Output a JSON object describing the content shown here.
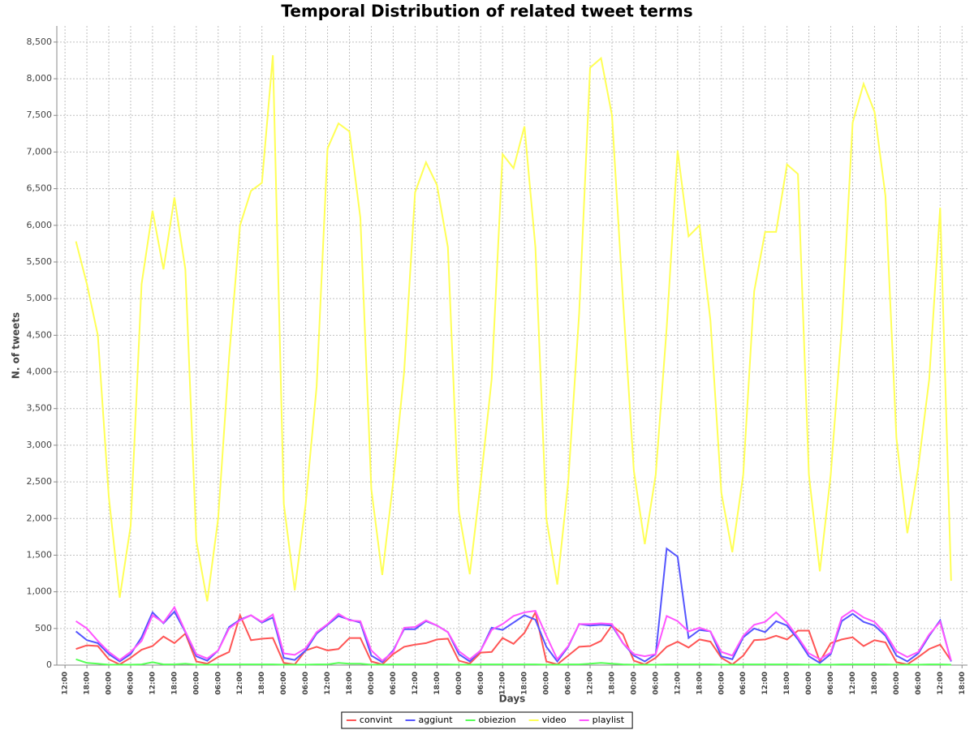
{
  "chart_data": {
    "type": "line",
    "title": "Temporal Distribution of related tweet terms",
    "x_label": "Days",
    "y_label": "N. of tweets",
    "x": [
      3,
      6,
      9,
      12,
      15,
      18,
      21,
      24,
      27,
      30,
      33,
      36,
      39,
      42,
      45,
      48,
      51,
      54,
      57,
      60,
      63,
      66,
      69,
      72,
      75,
      78,
      81,
      84,
      87,
      90,
      93,
      96,
      99,
      102,
      105,
      108,
      111,
      114,
      117,
      120,
      123,
      126,
      129,
      132,
      135,
      138,
      141,
      144,
      147,
      150,
      153,
      156,
      159,
      162,
      165,
      168,
      171,
      174,
      177,
      180,
      183,
      186,
      189,
      192,
      195,
      198,
      201,
      204,
      207,
      210,
      213,
      216,
      219,
      222,
      225,
      228,
      231,
      234,
      237,
      240,
      243
    ],
    "series": [
      {
        "name": "convint",
        "color": "#ff5555",
        "values": [
          220,
          270,
          260,
          80,
          10,
          100,
          210,
          260,
          390,
          300,
          430,
          50,
          20,
          110,
          180,
          680,
          340,
          360,
          370,
          30,
          10,
          200,
          250,
          200,
          220,
          370,
          370,
          50,
          10,
          150,
          250,
          280,
          300,
          350,
          360,
          60,
          20,
          170,
          180,
          370,
          290,
          440,
          720,
          50,
          10,
          130,
          250,
          260,
          330,
          540,
          420,
          60,
          10,
          100,
          250,
          320,
          240,
          350,
          320,
          100,
          10,
          130,
          340,
          350,
          400,
          350,
          470,
          470,
          50,
          300,
          350,
          380,
          260,
          340,
          310,
          40,
          10,
          110,
          220,
          280,
          60
        ]
      },
      {
        "name": "aggiunt",
        "color": "#5555ff",
        "values": [
          460,
          340,
          300,
          150,
          50,
          150,
          380,
          720,
          570,
          730,
          450,
          120,
          60,
          200,
          520,
          620,
          680,
          580,
          650,
          100,
          70,
          200,
          430,
          550,
          670,
          620,
          580,
          130,
          40,
          200,
          490,
          490,
          600,
          540,
          450,
          150,
          50,
          200,
          510,
          480,
          580,
          680,
          620,
          250,
          50,
          250,
          560,
          540,
          550,
          540,
          300,
          130,
          50,
          150,
          1590,
          1480,
          370,
          480,
          460,
          120,
          80,
          380,
          500,
          450,
          600,
          540,
          350,
          120,
          30,
          150,
          600,
          700,
          590,
          540,
          400,
          130,
          50,
          160,
          400,
          610,
          50
        ]
      },
      {
        "name": "obiezion",
        "color": "#55ff55",
        "values": [
          80,
          30,
          20,
          5,
          5,
          5,
          10,
          40,
          10,
          10,
          20,
          5,
          5,
          10,
          10,
          10,
          10,
          10,
          10,
          5,
          5,
          5,
          10,
          10,
          30,
          20,
          20,
          5,
          5,
          10,
          10,
          10,
          10,
          10,
          10,
          5,
          5,
          10,
          10,
          10,
          10,
          10,
          10,
          5,
          5,
          10,
          10,
          20,
          30,
          20,
          10,
          5,
          5,
          5,
          10,
          10,
          10,
          10,
          10,
          5,
          5,
          10,
          10,
          10,
          10,
          10,
          10,
          5,
          5,
          5,
          10,
          10,
          10,
          10,
          10,
          5,
          5,
          5,
          10,
          10,
          5
        ]
      },
      {
        "name": "video",
        "color": "#ffff55",
        "values": [
          5780,
          5200,
          4500,
          2300,
          920,
          1900,
          5200,
          6200,
          5400,
          6380,
          5400,
          1700,
          870,
          2000,
          4200,
          6000,
          6470,
          6580,
          8320,
          2200,
          1020,
          2200,
          3800,
          7050,
          7390,
          7280,
          6100,
          2400,
          1230,
          2500,
          4000,
          6450,
          6860,
          6550,
          5700,
          2100,
          1240,
          2500,
          3900,
          6970,
          6780,
          7350,
          5700,
          2000,
          1100,
          2500,
          4800,
          8150,
          8280,
          7500,
          5000,
          2650,
          1650,
          2600,
          4600,
          7020,
          5850,
          6000,
          4700,
          2350,
          1540,
          2600,
          5100,
          5910,
          5910,
          6830,
          6700,
          2600,
          1280,
          2600,
          4600,
          7400,
          7930,
          7550,
          6400,
          3100,
          1800,
          2700,
          3900,
          6240,
          1150
        ]
      },
      {
        "name": "playlist",
        "color": "#ff55ff",
        "values": [
          600,
          500,
          330,
          180,
          70,
          180,
          330,
          680,
          580,
          790,
          460,
          150,
          90,
          200,
          500,
          610,
          680,
          590,
          690,
          160,
          140,
          230,
          450,
          560,
          700,
          610,
          600,
          200,
          60,
          180,
          510,
          520,
          610,
          540,
          450,
          190,
          80,
          200,
          480,
          560,
          670,
          720,
          740,
          400,
          80,
          260,
          560,
          560,
          570,
          560,
          300,
          150,
          120,
          150,
          670,
          600,
          460,
          510,
          460,
          180,
          130,
          400,
          550,
          590,
          720,
          580,
          380,
          160,
          80,
          170,
          650,
          750,
          650,
          590,
          430,
          190,
          110,
          180,
          420,
          590,
          60
        ]
      }
    ],
    "xlim": [
      -2.25,
      247.5
    ],
    "xticks": [
      {
        "value": 0,
        "label": "12:00"
      },
      {
        "value": 6,
        "label": "18:00"
      },
      {
        "value": 12,
        "label": "00:00"
      },
      {
        "value": 18,
        "label": "06:00"
      },
      {
        "value": 24,
        "label": "12:00"
      },
      {
        "value": 30,
        "label": "18:00"
      },
      {
        "value": 36,
        "label": "00:00"
      },
      {
        "value": 42,
        "label": "06:00"
      },
      {
        "value": 48,
        "label": "12:00"
      },
      {
        "value": 54,
        "label": "18:00"
      },
      {
        "value": 60,
        "label": "00:00"
      },
      {
        "value": 66,
        "label": "06:00"
      },
      {
        "value": 72,
        "label": "12:00"
      },
      {
        "value": 78,
        "label": "18:00"
      },
      {
        "value": 84,
        "label": "00:00"
      },
      {
        "value": 90,
        "label": "06:00"
      },
      {
        "value": 96,
        "label": "12:00"
      },
      {
        "value": 102,
        "label": "18:00"
      },
      {
        "value": 108,
        "label": "00:00"
      },
      {
        "value": 114,
        "label": "06:00"
      },
      {
        "value": 120,
        "label": "12:00"
      },
      {
        "value": 126,
        "label": "18:00"
      },
      {
        "value": 132,
        "label": "00:00"
      },
      {
        "value": 138,
        "label": "06:00"
      },
      {
        "value": 144,
        "label": "12:00"
      },
      {
        "value": 150,
        "label": "18:00"
      },
      {
        "value": 156,
        "label": "00:00"
      },
      {
        "value": 162,
        "label": "06:00"
      },
      {
        "value": 168,
        "label": "12:00"
      },
      {
        "value": 174,
        "label": "18:00"
      },
      {
        "value": 180,
        "label": "00:00"
      },
      {
        "value": 186,
        "label": "06:00"
      },
      {
        "value": 192,
        "label": "12:00"
      },
      {
        "value": 198,
        "label": "18:00"
      },
      {
        "value": 204,
        "label": "00:00"
      },
      {
        "value": 210,
        "label": "06:00"
      },
      {
        "value": 216,
        "label": "12:00"
      },
      {
        "value": 222,
        "label": "18:00"
      },
      {
        "value": 228,
        "label": "00:00"
      },
      {
        "value": 234,
        "label": "06:00"
      },
      {
        "value": 240,
        "label": "12:00"
      },
      {
        "value": 246,
        "label": "18:00"
      }
    ],
    "ylim": [
      0,
      8720
    ],
    "yticks": [
      0,
      500,
      {
        "value": 1000,
        "label": "1,000"
      },
      {
        "value": 1500,
        "label": "1,500"
      },
      {
        "value": 2000,
        "label": "2,000"
      },
      {
        "value": 2500,
        "label": "2,500"
      },
      {
        "value": 3000,
        "label": "3,000"
      },
      {
        "value": 3500,
        "label": "3,500"
      },
      {
        "value": 4000,
        "label": "4,000"
      },
      {
        "value": 4500,
        "label": "4,500"
      },
      {
        "value": 5000,
        "label": "5,000"
      },
      {
        "value": 5500,
        "label": "5,500"
      },
      {
        "value": 6000,
        "label": "6,000"
      },
      {
        "value": 6500,
        "label": "6,500"
      },
      {
        "value": 7000,
        "label": "7,000"
      },
      {
        "value": 7500,
        "label": "7,500"
      },
      {
        "value": 8000,
        "label": "8,000"
      },
      {
        "value": 8500,
        "label": "8,500"
      }
    ],
    "grid": true,
    "legend": "bottom"
  }
}
